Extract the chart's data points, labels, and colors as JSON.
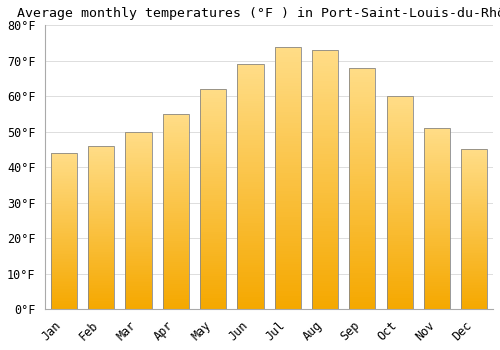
{
  "title": "Average monthly temperatures (°F ) in Port-Saint-Louis-du-Rhône",
  "months": [
    "Jan",
    "Feb",
    "Mar",
    "Apr",
    "May",
    "Jun",
    "Jul",
    "Aug",
    "Sep",
    "Oct",
    "Nov",
    "Dec"
  ],
  "values": [
    44,
    46,
    50,
    55,
    62,
    69,
    74,
    73,
    68,
    60,
    51,
    45
  ],
  "ylim": [
    0,
    80
  ],
  "yticks": [
    0,
    10,
    20,
    30,
    40,
    50,
    60,
    70,
    80
  ],
  "ytick_labels": [
    "0°F",
    "10°F",
    "20°F",
    "30°F",
    "40°F",
    "50°F",
    "60°F",
    "70°F",
    "80°F"
  ],
  "title_fontsize": 9.5,
  "tick_fontsize": 8.5,
  "background_color": "#FFFFFF",
  "grid_color": "#DDDDDD",
  "bar_color_bottom": "#F5A800",
  "bar_color_top": "#FFDD88",
  "bar_edge_color": "#888888",
  "bar_width": 0.7
}
